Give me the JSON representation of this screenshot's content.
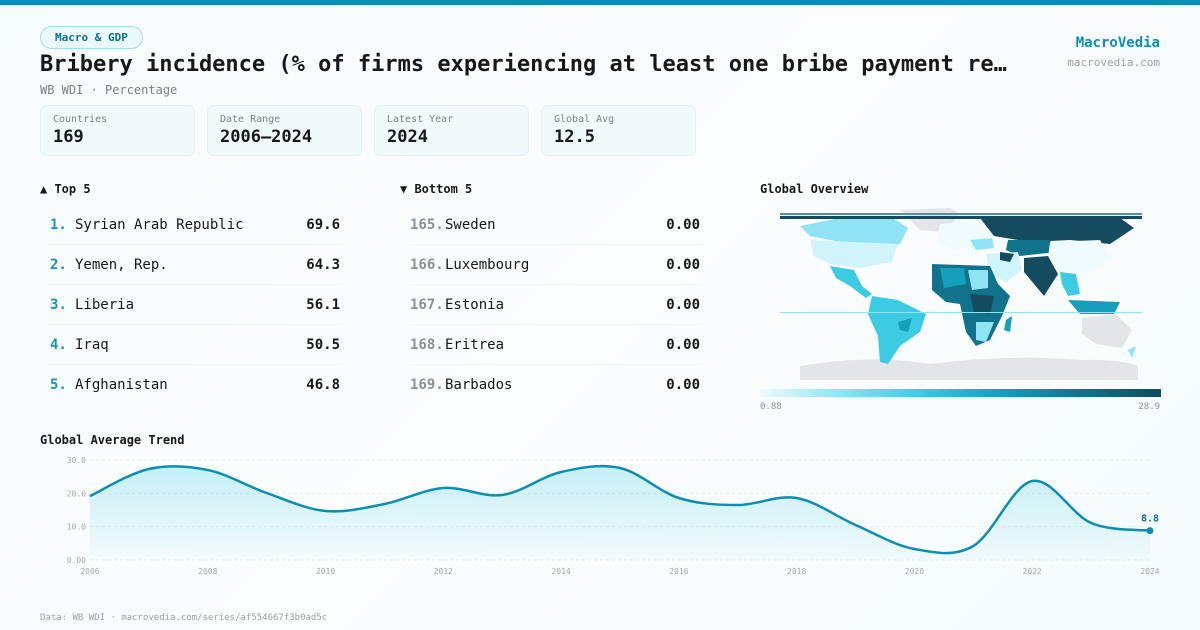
{
  "header": {
    "tag": "Macro & GDP",
    "title": "Bribery incidence (% of firms experiencing at least one bribe payment re…",
    "subtitle": "WB WDI · Percentage",
    "brand_name": "MacroVedia",
    "brand_url": "macrovedia.com"
  },
  "stats": [
    {
      "label": "Countries",
      "value": "169"
    },
    {
      "label": "Date Range",
      "value": "2006–2024"
    },
    {
      "label": "Latest Year",
      "value": "2024"
    },
    {
      "label": "Global Avg",
      "value": "12.5"
    }
  ],
  "top5": {
    "heading": "▲ Top 5",
    "items": [
      {
        "rank": "1.",
        "name": "Syrian Arab Republic",
        "value": "69.6"
      },
      {
        "rank": "2.",
        "name": "Yemen, Rep.",
        "value": "64.3"
      },
      {
        "rank": "3.",
        "name": "Liberia",
        "value": "56.1"
      },
      {
        "rank": "4.",
        "name": "Iraq",
        "value": "50.5"
      },
      {
        "rank": "5.",
        "name": "Afghanistan",
        "value": "46.8"
      }
    ]
  },
  "bottom5": {
    "heading": "▼ Bottom 5",
    "items": [
      {
        "rank": "165.",
        "name": "Sweden",
        "value": "0.00"
      },
      {
        "rank": "166.",
        "name": "Luxembourg",
        "value": "0.00"
      },
      {
        "rank": "167.",
        "name": "Estonia",
        "value": "0.00"
      },
      {
        "rank": "168.",
        "name": "Eritrea",
        "value": "0.00"
      },
      {
        "rank": "169.",
        "name": "Barbados",
        "value": "0.00"
      }
    ]
  },
  "map": {
    "title": "Global Overview",
    "legend_min": "0.88",
    "legend_max": "28.9",
    "colors": {
      "low": "#effbfd",
      "mid": "#3ccbe3",
      "high": "#154b5e",
      "nodata": "#e3e5e8"
    }
  },
  "trend": {
    "title": "Global Average Trend",
    "last_label": "8.8",
    "line_color": "#0b8fb0"
  },
  "footer": "Data: WB WDI · macrovedia.com/series/af554667f3b0ad5c",
  "chart_data": [
    {
      "type": "line",
      "title": "Global Average Trend",
      "xlabel": "",
      "ylabel": "",
      "x": [
        2006,
        2007,
        2008,
        2009,
        2010,
        2011,
        2012,
        2013,
        2014,
        2015,
        2016,
        2017,
        2018,
        2019,
        2020,
        2021,
        2022,
        2023,
        2024
      ],
      "values": [
        19.2,
        27.3,
        27.0,
        20.1,
        14.7,
        16.8,
        21.6,
        19.5,
        26.4,
        27.6,
        18.6,
        16.5,
        18.6,
        10.5,
        3.3,
        4.2,
        23.7,
        11.1,
        8.8
      ],
      "ylim": [
        0,
        30
      ],
      "yticks": [
        "0.00",
        "10.0",
        "20.0",
        "30.0"
      ],
      "xticks": [
        "2006",
        "2008",
        "2010",
        "2012",
        "2014",
        "2016",
        "2018",
        "2020",
        "2022",
        "2024"
      ],
      "grid": true,
      "annotations": [
        {
          "x": 2024,
          "y": 8.8,
          "text": "8.8"
        }
      ]
    },
    {
      "type": "bar",
      "title": "Top 5",
      "categories": [
        "Syrian Arab Republic",
        "Yemen, Rep.",
        "Liberia",
        "Iraq",
        "Afghanistan"
      ],
      "values": [
        69.6,
        64.3,
        56.1,
        50.5,
        46.8
      ]
    },
    {
      "type": "bar",
      "title": "Bottom 5",
      "categories": [
        "Sweden",
        "Luxembourg",
        "Estonia",
        "Eritrea",
        "Barbados"
      ],
      "values": [
        0.0,
        0.0,
        0.0,
        0.0,
        0.0
      ]
    },
    {
      "type": "heatmap",
      "title": "Global Overview",
      "legend_range": [
        0.88,
        28.9
      ]
    }
  ]
}
